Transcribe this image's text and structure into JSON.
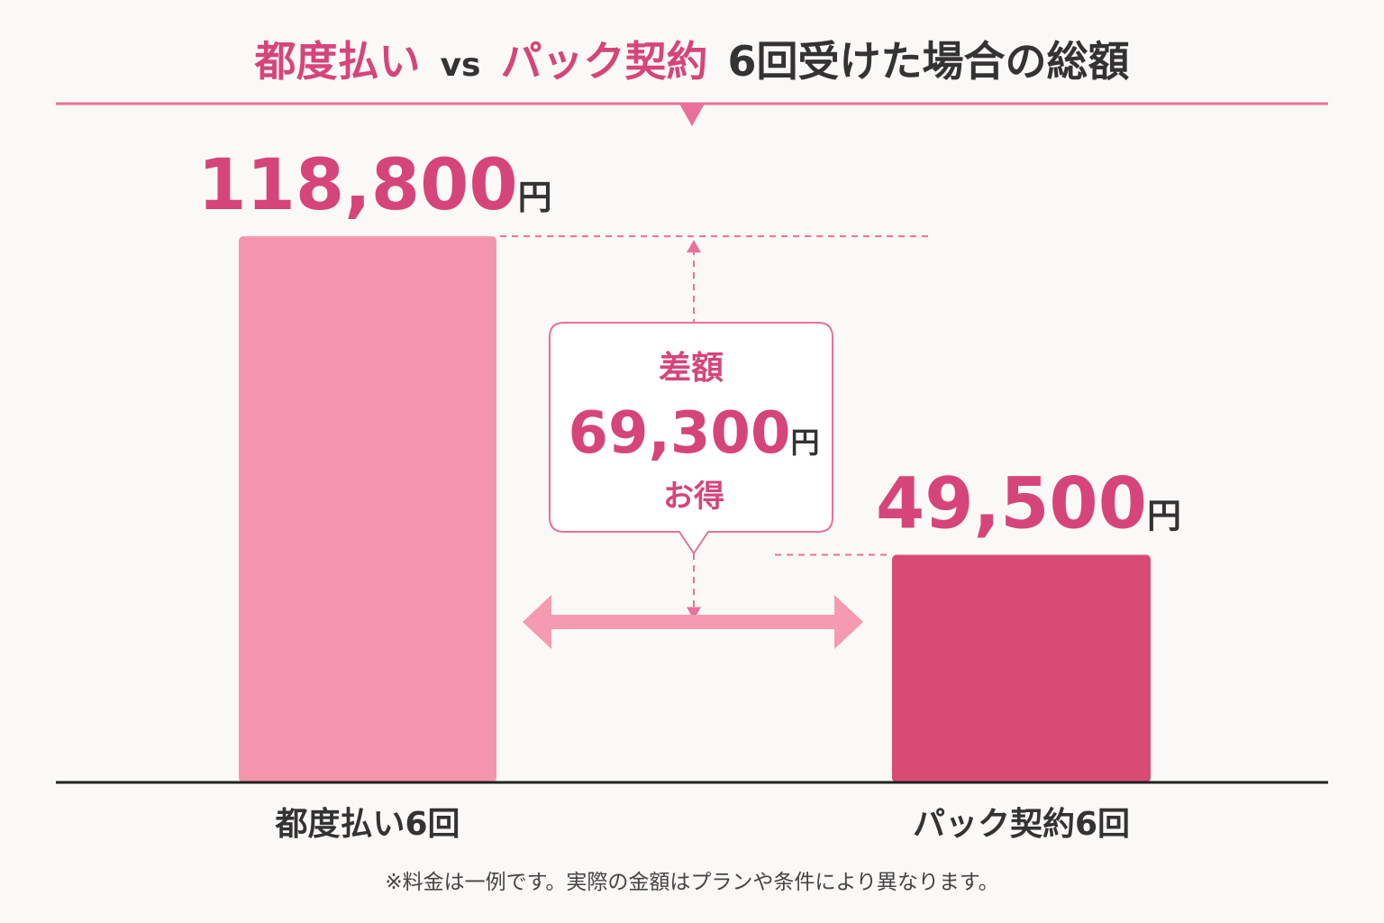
{
  "chart_data": {
    "type": "bar",
    "title_parts": [
      {
        "text": "都度払い",
        "color": "#d6457a"
      },
      {
        "text": "vs",
        "color": "#333333"
      },
      {
        "text": "パック契約",
        "color": "#d6457a"
      },
      {
        "text": "6回受けた場合の総額",
        "color": "#333333"
      }
    ],
    "categories": [
      "都度払い6回",
      "パック契約6回"
    ],
    "values": [
      118800,
      49500
    ],
    "value_labels": [
      "118,800",
      "49,500"
    ],
    "unit": "円",
    "colors": [
      "#f595ad",
      "#d94a74"
    ],
    "ylim": [
      0,
      130000
    ],
    "difference": {
      "heading": "差額",
      "value": 69300,
      "value_label": "69,300",
      "unit": "円",
      "suffix": "お得"
    },
    "footnote": "※料金は一例です。実際の金額はプランや条件により異なります。"
  }
}
